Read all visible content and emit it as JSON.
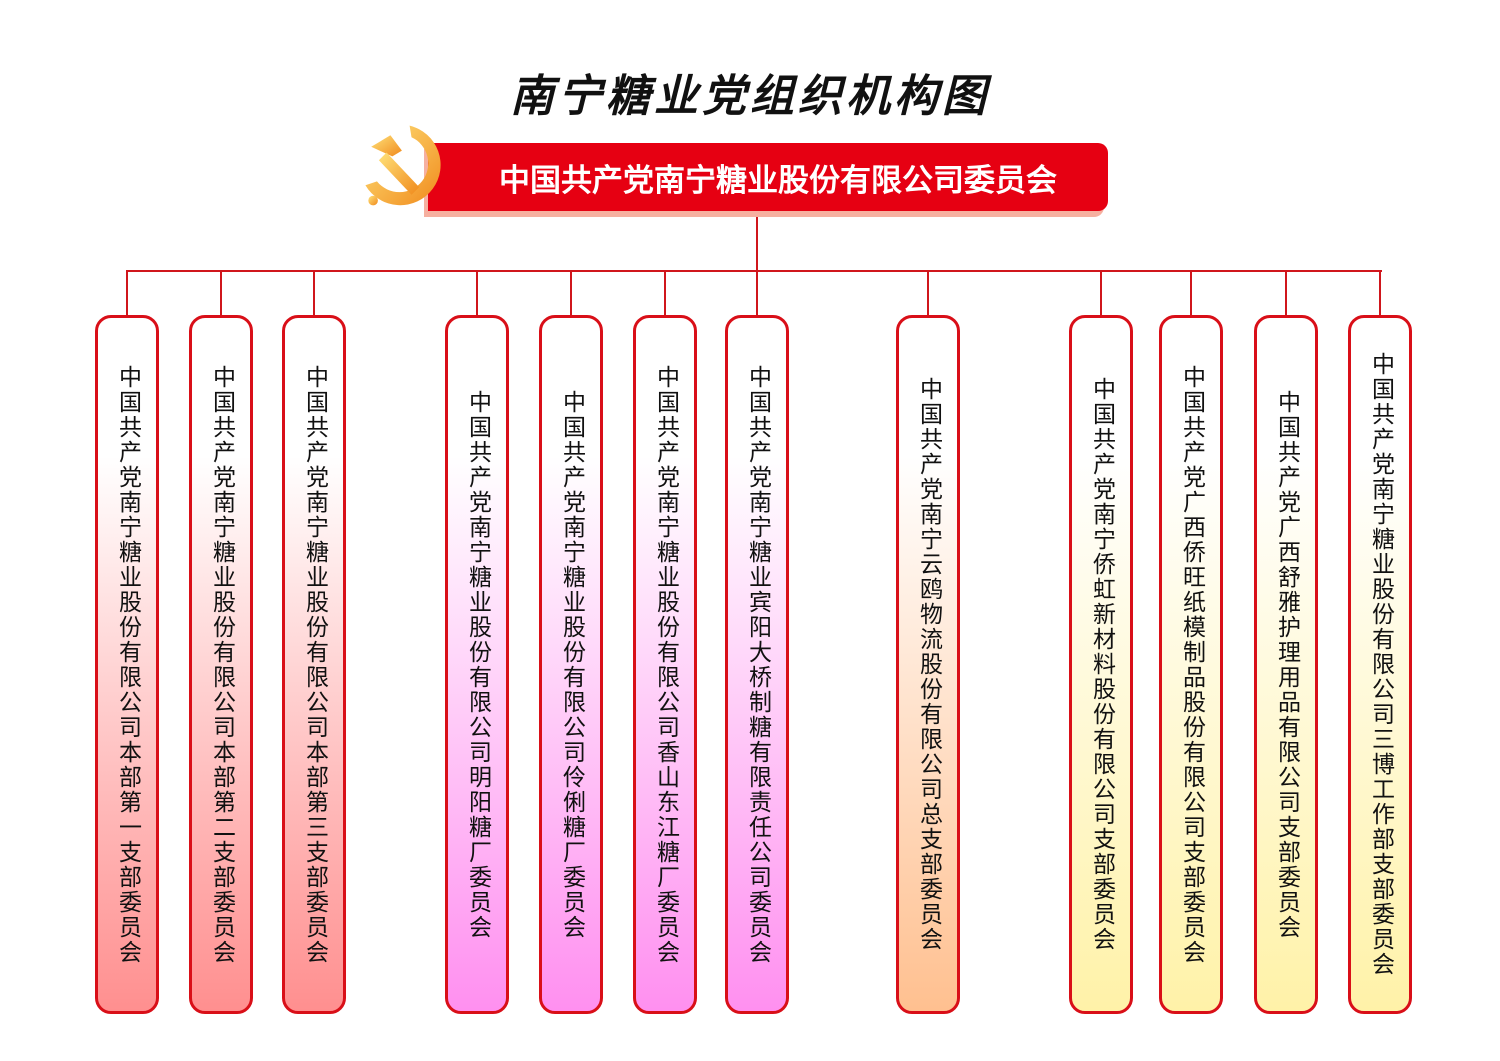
{
  "title": "南宁糖业党组织机构图",
  "root": {
    "label": "中国共产党南宁糖业股份有限公司委员会",
    "icon": "party-emblem-icon",
    "color": "#e60012"
  },
  "branches": [
    {
      "label": "中国共产党南宁糖业股份有限公司本部第一支部委员会",
      "color": "#ff8f8f"
    },
    {
      "label": "中国共产党南宁糖业股份有限公司本部第二支部委员会",
      "color": "#ff8f8f"
    },
    {
      "label": "中国共产党南宁糖业股份有限公司本部第三支部委员会",
      "color": "#ff8f8f"
    },
    {
      "label": "中国共产党南宁糖业股份有限公司明阳糖厂委员会",
      "color": "#ff90f0"
    },
    {
      "label": "中国共产党南宁糖业股份有限公司伶俐糖厂委员会",
      "color": "#ff90f0"
    },
    {
      "label": "中国共产党南宁糖业股份有限公司香山东江糖厂委员会",
      "color": "#ff90f0"
    },
    {
      "label": "中国共产党南宁糖业宾阳大桥制糖有限责任公司委员会",
      "color": "#ff90f0"
    },
    {
      "label": "中国共产党南宁云鸥物流股份有限公司总支部委员会",
      "color": "#ffc090"
    },
    {
      "label": "中国共产党南宁侨虹新材料股份有限公司支部委员会",
      "color": "#fff2a8"
    },
    {
      "label": "中国共产党广西侨旺纸模制品股份有限公司支部委员会",
      "color": "#fff2a8"
    },
    {
      "label": "中国共产党广西舒雅护理用品有限公司支部委员会",
      "color": "#fff2a8"
    },
    {
      "label": "中国共产党南宁糖业股份有限公司三博工作部支部委员会",
      "color": "#fff2a8"
    }
  ]
}
